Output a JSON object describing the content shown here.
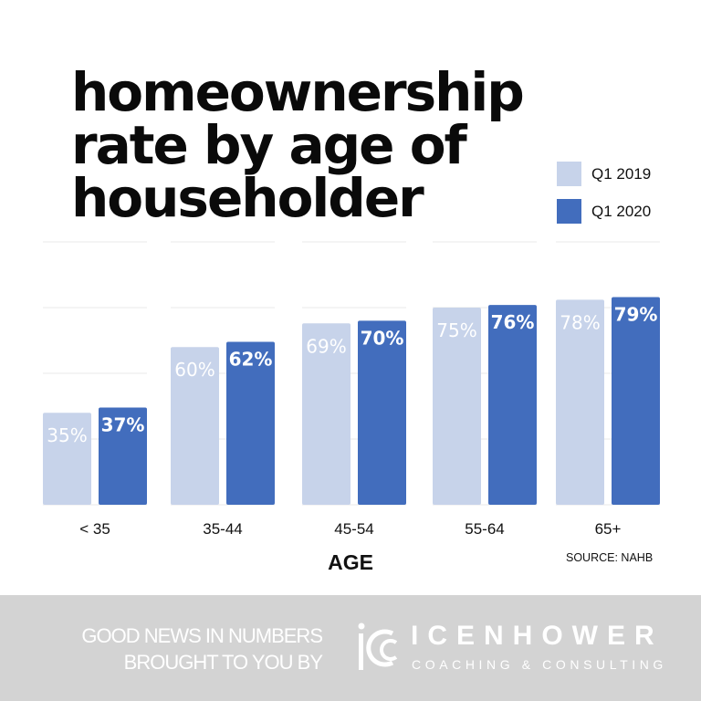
{
  "title_lines": [
    "homeownership",
    "rate by age of",
    "householder"
  ],
  "colors": {
    "q1_2019": "#c7d3ea",
    "q1_2020": "#426dbd",
    "grid": "#eeeeee",
    "footer": "#d3d3d3"
  },
  "chart_data": {
    "type": "bar",
    "title": "homeownership rate by age of householder",
    "xlabel": "AGE",
    "ylabel": "",
    "categories": [
      "< 35",
      "35-44",
      "45-54",
      "55-64",
      "65+"
    ],
    "series": [
      {
        "name": "Q1 2019",
        "values": [
          35,
          60,
          69,
          75,
          78
        ],
        "labels": [
          "35%",
          "60%",
          "69%",
          "75%",
          "78%"
        ]
      },
      {
        "name": "Q1 2020",
        "values": [
          37,
          62,
          70,
          76,
          79
        ],
        "labels": [
          "37%",
          "62%",
          "70%",
          "76%",
          "79%"
        ]
      }
    ],
    "ylim": [
      0,
      100
    ],
    "gridlines": [
      0,
      25,
      50,
      75,
      100
    ],
    "grid": true,
    "legend": "top-right"
  },
  "source": "SOURCE: NAHB",
  "footer": {
    "line1": "GOOD NEWS IN NUMBERS",
    "line2": "BROUGHT TO YOU BY",
    "logo_name": "ICENHOWER",
    "logo_sub": "COACHING & CONSULTING"
  }
}
